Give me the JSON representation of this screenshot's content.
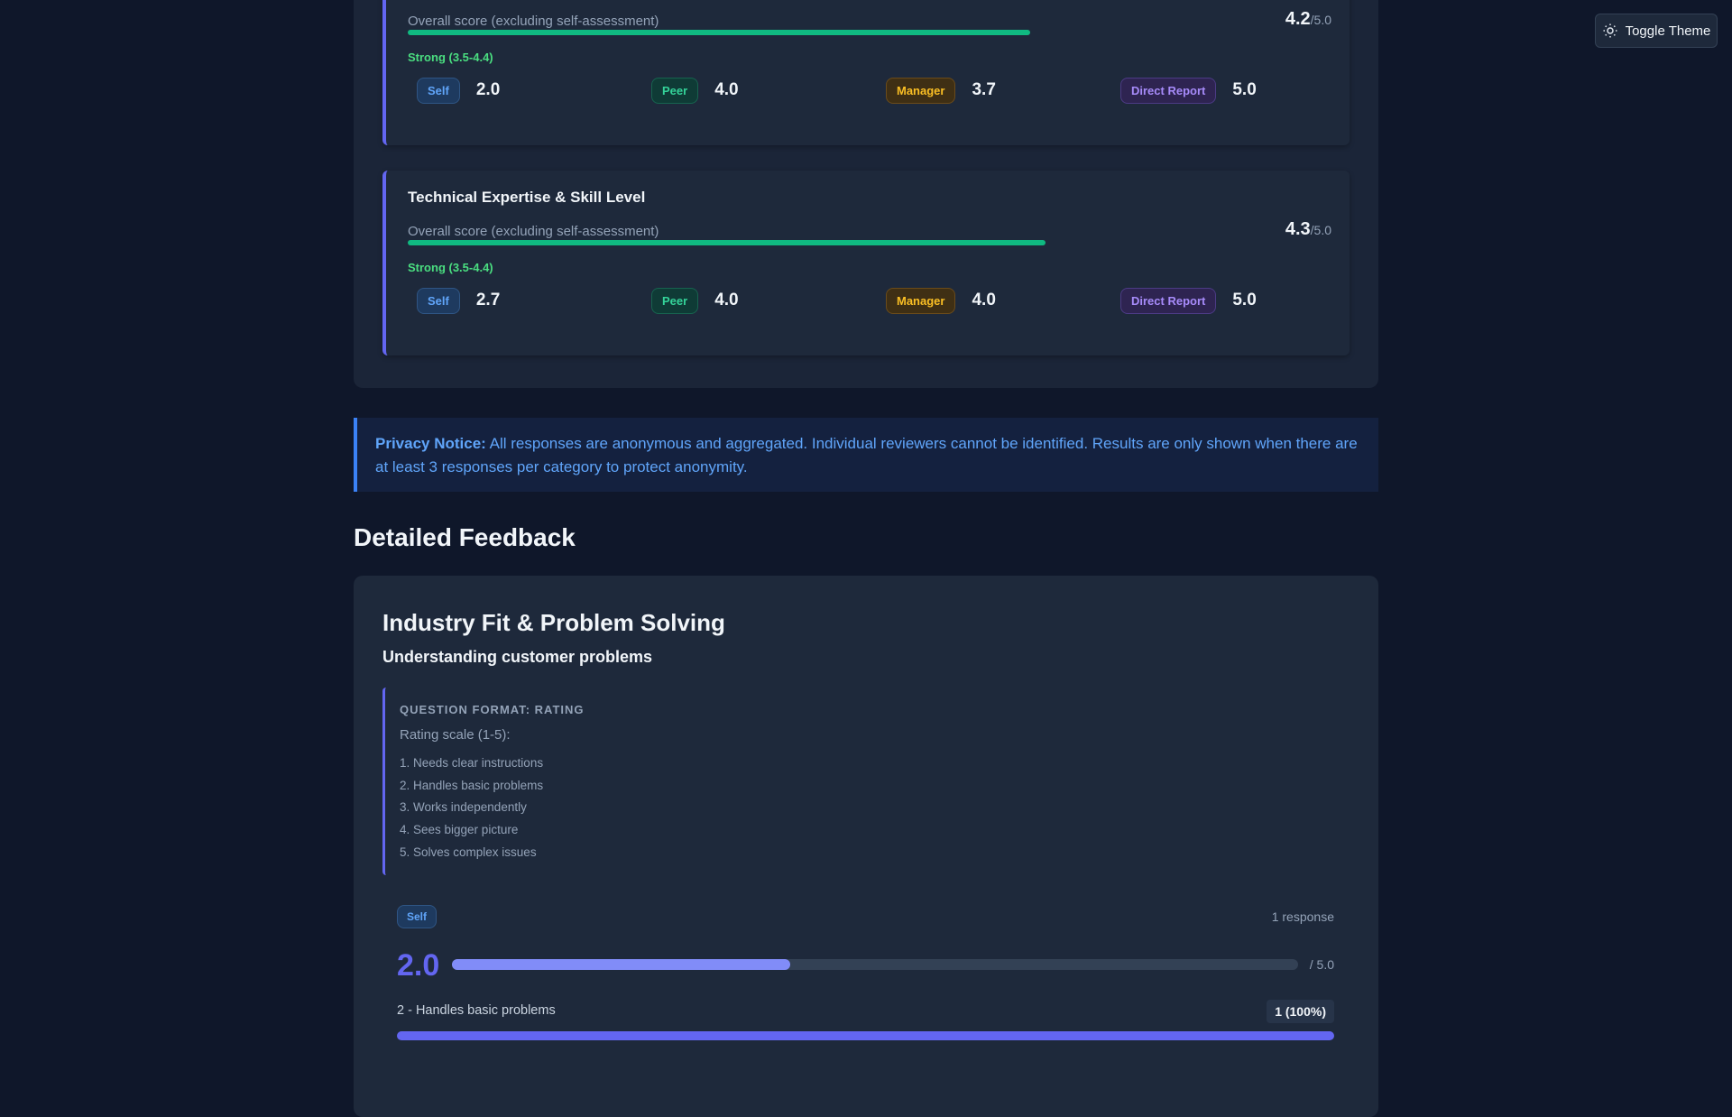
{
  "toggle_theme": "Toggle Theme",
  "competencies": [
    {
      "overall_label": "Overall score (excluding self-assessment)",
      "score": "4.2",
      "max": "/5.0",
      "band": "Strong (3.5-4.4)",
      "ratings": [
        {
          "role": "Self",
          "score": "2.0"
        },
        {
          "role": "Peer",
          "score": "4.0"
        },
        {
          "role": "Manager",
          "score": "3.7"
        },
        {
          "role": "Direct Report",
          "score": "5.0"
        }
      ]
    },
    {
      "title": "Technical Expertise & Skill Level",
      "overall_label": "Overall score (excluding self-assessment)",
      "score": "4.3",
      "max": "/5.0",
      "band": "Strong (3.5-4.4)",
      "ratings": [
        {
          "role": "Self",
          "score": "2.7"
        },
        {
          "role": "Peer",
          "score": "4.0"
        },
        {
          "role": "Manager",
          "score": "4.0"
        },
        {
          "role": "Direct Report",
          "score": "5.0"
        }
      ]
    }
  ],
  "privacy": {
    "label": "Privacy Notice:",
    "text": "All responses are anonymous and aggregated. Individual reviewers cannot be identified. Results are only shown when there are at least 3 responses per category to protect anonymity."
  },
  "detailed_heading": "Detailed Feedback",
  "feedback": {
    "section": "Industry Fit & Problem Solving",
    "question": "Understanding customer problems",
    "format": "QUESTION FORMAT: RATING",
    "scale_title": "Rating scale (1-5):",
    "scale": [
      "1. Needs clear instructions",
      "2. Handles basic problems",
      "3. Works independently",
      "4. Sees bigger picture",
      "5. Solves complex issues"
    ],
    "responses": [
      {
        "role": "Self",
        "count": "1 response",
        "average": "2.0",
        "max": "/ 5.0",
        "distribution": [
          {
            "label": "2 - Handles basic problems",
            "count": "1 (100%)"
          }
        ]
      }
    ]
  }
}
